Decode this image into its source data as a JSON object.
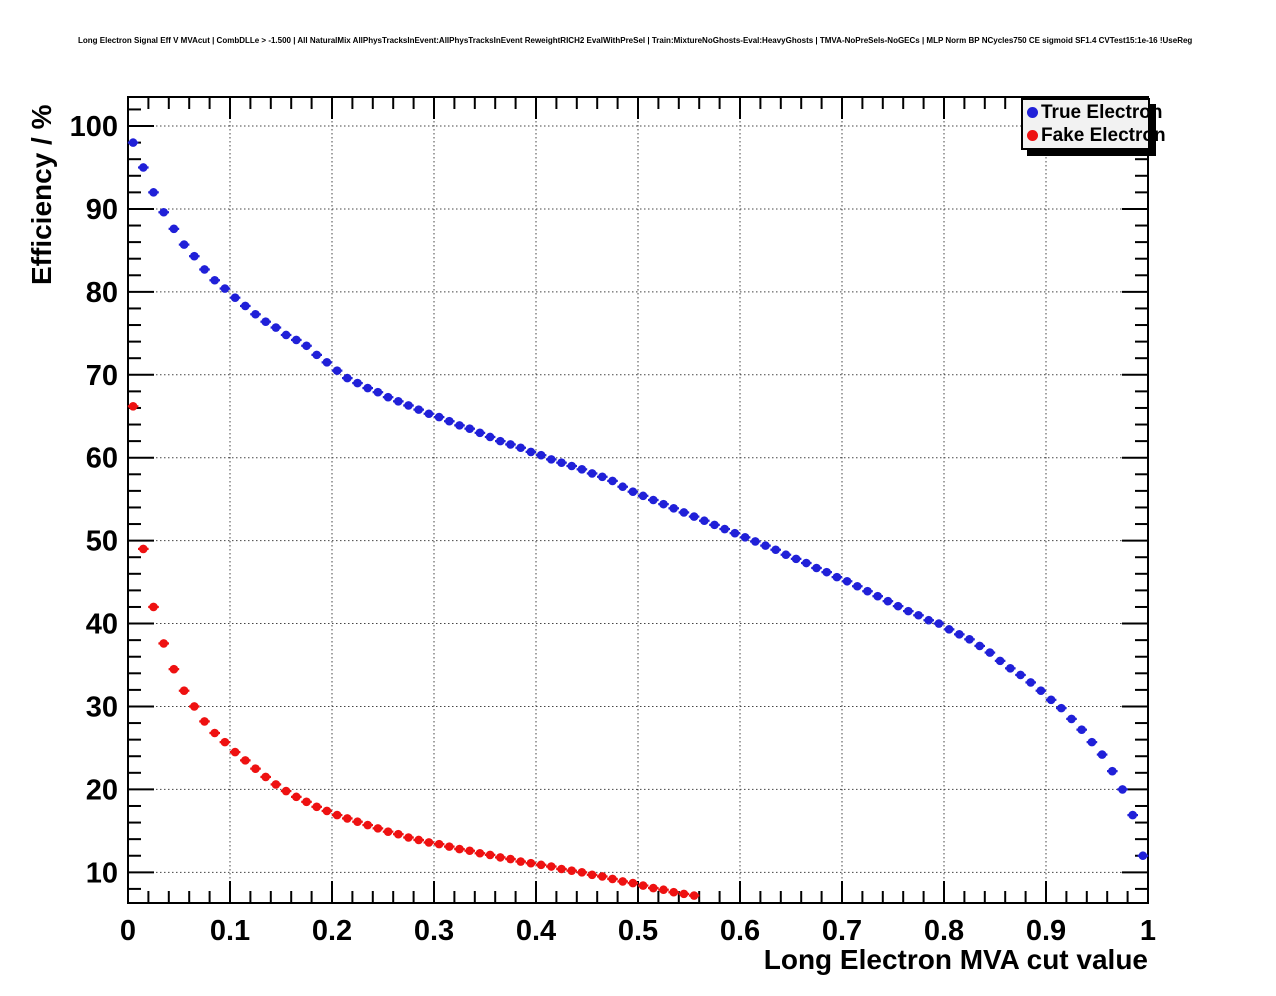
{
  "chart_data": {
    "type": "scatter",
    "title": "Long Electron Signal Eff V MVAcut | CombDLLe > -1.500 | All NaturalMix AllPhysTracksInEvent:AllPhysTracksInEvent ReweightRICH2 EvalWithPreSel | Train:MixtureNoGhosts-Eval:HeavyGhosts | TMVA-NoPreSels-NoGECs | MLP Norm BP NCycles750 CE sigmoid SF1.4 CVTest15:1e-16 !UseReg",
    "xlabel": "Long Electron MVA cut value",
    "ylabel": "Efficiency / %",
    "xlim": [
      0,
      1
    ],
    "ylim": [
      6.3,
      103.5
    ],
    "grid": true,
    "grid_style": "dotted",
    "bin_width": 0.01,
    "x_ticks": {
      "values": [
        0,
        0.1,
        0.2,
        0.3,
        0.4,
        0.5,
        0.6,
        0.7,
        0.8,
        0.9,
        1
      ],
      "labels": [
        "0",
        "0.1",
        "0.2",
        "0.3",
        "0.4",
        "0.5",
        "0.6",
        "0.7",
        "0.8",
        "0.9",
        "1"
      ],
      "minor_step": 0.02
    },
    "y_ticks": {
      "values": [
        10,
        20,
        30,
        40,
        50,
        60,
        70,
        80,
        90,
        100
      ],
      "labels": [
        "10",
        "20",
        "30",
        "40",
        "50",
        "60",
        "70",
        "80",
        "90",
        "100"
      ],
      "minor_step": 2
    },
    "legend": {
      "position": "top-right",
      "entries": [
        {
          "label": "True Electron",
          "color": "#2020d8"
        },
        {
          "label": "Fake Electron",
          "color": "#ee1111"
        }
      ]
    },
    "series": [
      {
        "name": "True Electron",
        "color": "#2020d8",
        "marker": "circle",
        "x": [
          0.005,
          0.015,
          0.025,
          0.035,
          0.045,
          0.055,
          0.065,
          0.075,
          0.085,
          0.095,
          0.105,
          0.115,
          0.125,
          0.135,
          0.145,
          0.155,
          0.165,
          0.175,
          0.185,
          0.195,
          0.205,
          0.215,
          0.225,
          0.235,
          0.245,
          0.255,
          0.265,
          0.275,
          0.285,
          0.295,
          0.305,
          0.315,
          0.325,
          0.335,
          0.345,
          0.355,
          0.365,
          0.375,
          0.385,
          0.395,
          0.405,
          0.415,
          0.425,
          0.435,
          0.445,
          0.455,
          0.465,
          0.475,
          0.485,
          0.495,
          0.505,
          0.515,
          0.525,
          0.535,
          0.545,
          0.555,
          0.565,
          0.575,
          0.585,
          0.595,
          0.605,
          0.615,
          0.625,
          0.635,
          0.645,
          0.655,
          0.665,
          0.675,
          0.685,
          0.695,
          0.705,
          0.715,
          0.725,
          0.735,
          0.745,
          0.755,
          0.765,
          0.775,
          0.785,
          0.795,
          0.805,
          0.815,
          0.825,
          0.835,
          0.845,
          0.855,
          0.865,
          0.875,
          0.885,
          0.895,
          0.905,
          0.915,
          0.925,
          0.935,
          0.945,
          0.955,
          0.965,
          0.975,
          0.985,
          0.995
        ],
        "y": [
          98.0,
          95.0,
          92.0,
          89.6,
          87.6,
          85.7,
          84.3,
          82.7,
          81.4,
          80.4,
          79.3,
          78.3,
          77.3,
          76.4,
          75.7,
          74.8,
          74.2,
          73.5,
          72.4,
          71.5,
          70.5,
          69.6,
          69.0,
          68.4,
          67.9,
          67.3,
          66.8,
          66.3,
          65.8,
          65.3,
          64.9,
          64.4,
          63.9,
          63.5,
          63.0,
          62.5,
          62.0,
          61.6,
          61.2,
          60.7,
          60.3,
          59.8,
          59.4,
          59.0,
          58.6,
          58.1,
          57.7,
          57.2,
          56.5,
          55.9,
          55.4,
          54.9,
          54.4,
          53.9,
          53.4,
          52.9,
          52.4,
          51.9,
          51.4,
          50.9,
          50.4,
          49.9,
          49.4,
          48.9,
          48.3,
          47.8,
          47.3,
          46.7,
          46.2,
          45.6,
          45.1,
          44.5,
          43.9,
          43.3,
          42.7,
          42.1,
          41.5,
          41.0,
          40.4,
          40.0,
          39.3,
          38.7,
          38.1,
          37.3,
          36.5,
          35.5,
          34.6,
          33.8,
          32.9,
          31.9,
          30.8,
          29.8,
          28.5,
          27.2,
          25.7,
          24.2,
          22.2,
          20.0,
          16.9,
          12.0
        ]
      },
      {
        "name": "Fake Electron",
        "color": "#ee1111",
        "marker": "circle",
        "x": [
          0.005,
          0.015,
          0.025,
          0.035,
          0.045,
          0.055,
          0.065,
          0.075,
          0.085,
          0.095,
          0.105,
          0.115,
          0.125,
          0.135,
          0.145,
          0.155,
          0.165,
          0.175,
          0.185,
          0.195,
          0.205,
          0.215,
          0.225,
          0.235,
          0.245,
          0.255,
          0.265,
          0.275,
          0.285,
          0.295,
          0.305,
          0.315,
          0.325,
          0.335,
          0.345,
          0.355,
          0.365,
          0.375,
          0.385,
          0.395,
          0.405,
          0.415,
          0.425,
          0.435,
          0.445,
          0.455,
          0.465,
          0.475,
          0.485,
          0.495,
          0.505,
          0.515,
          0.525,
          0.535,
          0.545,
          0.555
        ],
        "y": [
          66.2,
          49.0,
          42.0,
          37.6,
          34.5,
          31.9,
          30.0,
          28.2,
          26.8,
          25.7,
          24.5,
          23.5,
          22.5,
          21.5,
          20.6,
          19.8,
          19.1,
          18.5,
          17.9,
          17.4,
          16.9,
          16.5,
          16.1,
          15.7,
          15.3,
          14.9,
          14.6,
          14.2,
          13.9,
          13.6,
          13.4,
          13.1,
          12.8,
          12.6,
          12.3,
          12.1,
          11.8,
          11.6,
          11.3,
          11.1,
          10.9,
          10.7,
          10.4,
          10.2,
          10.0,
          9.7,
          9.5,
          9.2,
          8.9,
          8.7,
          8.4,
          8.1,
          7.9,
          7.6,
          7.4,
          7.2
        ]
      }
    ]
  }
}
